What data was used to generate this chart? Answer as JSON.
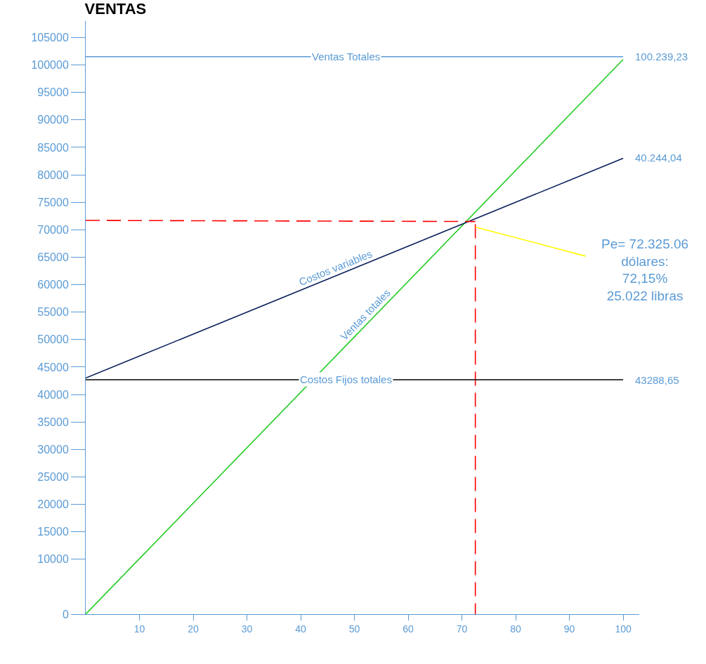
{
  "chart_data": {
    "type": "line",
    "title": "VENTAS",
    "xlim": [
      0,
      103
    ],
    "ylim": [
      0,
      108000
    ],
    "xticks": [
      10,
      20,
      30,
      40,
      50,
      60,
      70,
      80,
      90,
      100
    ],
    "yticks": [
      0,
      10000,
      15000,
      20000,
      25000,
      30000,
      35000,
      40000,
      45000,
      50000,
      55000,
      60000,
      65000,
      70000,
      75000,
      80000,
      85000,
      90000,
      95000,
      100000,
      105000
    ],
    "legend": false,
    "series": [
      {
        "name": "Ventas totales",
        "color": "#22cc22",
        "x": [
          0,
          100
        ],
        "values": [
          0,
          101000
        ]
      },
      {
        "name": "Costos variables",
        "color": "#0b1f5c",
        "x": [
          0,
          100
        ],
        "values": [
          43000,
          83000
        ]
      },
      {
        "color": "#ff0000",
        "line_style": "dashed",
        "x": [
          0,
          72.5
        ],
        "values": [
          71700,
          71500
        ]
      },
      {
        "color": "#ff0000",
        "line_style": "dashed",
        "x": [
          72.5,
          72.5
        ],
        "values": [
          71000,
          0
        ]
      },
      {
        "color": "#ffff00",
        "x": [
          72.5,
          93
        ],
        "values": [
          70500,
          65200
        ]
      }
    ],
    "ref_lines": [
      {
        "axis": "y",
        "value": 101500,
        "label": "Ventas Totales",
        "color": "#5b9bd5"
      },
      {
        "axis": "y",
        "value": 42700,
        "label": "Costos Fijos totales",
        "color": "#000000"
      }
    ],
    "annotations": [
      "100.239,23",
      "40.244,04",
      "43288,65",
      "Pe= 72.325.06\ndólares:\n72,15%\n25.022 libras"
    ]
  }
}
